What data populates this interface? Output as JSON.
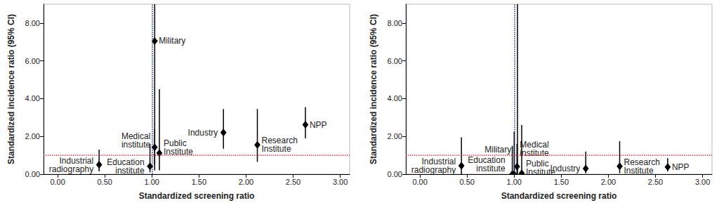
{
  "chart_data": [
    {
      "type": "scatter",
      "x_label": "Standardized screening ratio",
      "y_label": "Standardized incidence ratio (95% CI)",
      "xlim": [
        -0.15,
        3.1
      ],
      "ylim": [
        0,
        9
      ],
      "xticks": [
        {
          "value": 0,
          "label": "0.00"
        },
        {
          "value": 0.5,
          "label": "0.50"
        },
        {
          "value": 1,
          "label": "1.00"
        },
        {
          "value": 1.5,
          "label": "1.50"
        },
        {
          "value": 2,
          "label": "2.00"
        },
        {
          "value": 2.5,
          "label": "2.50"
        },
        {
          "value": 3,
          "label": "3.00"
        }
      ],
      "yticks": [
        {
          "value": 0,
          "label": "0.00"
        },
        {
          "value": 2,
          "label": "2.00"
        },
        {
          "value": 4,
          "label": "4.00"
        },
        {
          "value": 6,
          "label": "6.00"
        },
        {
          "value": 8,
          "label": "8.00"
        }
      ],
      "point_labels": [
        "Industrial radiography",
        "Education institute",
        "Military",
        "Medical institute",
        "Public Institute",
        "Industry",
        "Research Institute",
        "NPP"
      ],
      "x": [
        0.44,
        0.98,
        1.03,
        1.03,
        1.08,
        1.76,
        2.12,
        2.63
      ],
      "values": [
        0.5,
        0.42,
        7.05,
        1.42,
        1.12,
        2.2,
        1.55,
        2.62
      ],
      "ci_lower": [
        0.15,
        0.1,
        0.2,
        0.5,
        0.2,
        1.35,
        0.65,
        1.9
      ],
      "ci_upper": [
        1.3,
        1.6,
        11,
        2.4,
        4.5,
        3.45,
        3.45,
        3.55
      ],
      "color": "#000000",
      "marker": "diamond",
      "reference_lines": [
        {
          "axis": "x",
          "value": 1.0,
          "color": "#1a3a8a",
          "line_style": "dotted"
        },
        {
          "axis": "y",
          "value": 1.0,
          "color": "#e0393e",
          "line_style": "dotted"
        }
      ]
    },
    {
      "type": "scatter",
      "x_label": "Standardized screening ratio",
      "y_label": "Standardized incidence ratio (95% CI)",
      "xlim": [
        -0.15,
        3.1
      ],
      "ylim": [
        0,
        9
      ],
      "xticks": [
        {
          "value": 0,
          "label": "0.00"
        },
        {
          "value": 0.5,
          "label": "0.50"
        },
        {
          "value": 1,
          "label": "1.00"
        },
        {
          "value": 1.5,
          "label": "1.50"
        },
        {
          "value": 2,
          "label": "2.00"
        },
        {
          "value": 2.5,
          "label": "2.50"
        },
        {
          "value": 3,
          "label": "3.00"
        }
      ],
      "yticks": [
        {
          "value": 0,
          "label": "0.00"
        },
        {
          "value": 2,
          "label": "2.00"
        },
        {
          "value": 4,
          "label": "4.00"
        },
        {
          "value": 6,
          "label": "6.00"
        },
        {
          "value": 8,
          "label": "8.00"
        }
      ],
      "point_labels": [
        "Industrial radiography",
        "Education institute",
        "Military",
        "Medical institute",
        "Public Institute",
        "Industry",
        "Research Institute",
        "NPP"
      ],
      "x": [
        0.44,
        0.98,
        1.0,
        1.03,
        1.08,
        1.76,
        2.12,
        2.63
      ],
      "values": [
        0.45,
        0.0,
        0.0,
        0.4,
        0.05,
        0.3,
        0.42,
        0.38
      ],
      "ci_lower": [
        0.0,
        0.0,
        0.0,
        0.05,
        0.0,
        0.05,
        0.05,
        0.15
      ],
      "ci_upper": [
        1.95,
        1.5,
        2.25,
        1.6,
        2.6,
        1.2,
        1.75,
        0.85
      ],
      "color": "#000000",
      "marker": "diamond",
      "reference_lines": [
        {
          "axis": "x",
          "value": 1.03,
          "color": "#000000",
          "line_style": "solid"
        },
        {
          "axis": "x",
          "value": 1.0,
          "color": "#1a3a8a",
          "line_style": "dotted"
        },
        {
          "axis": "y",
          "value": 1.0,
          "color": "#e0393e",
          "line_style": "dotted"
        }
      ]
    }
  ]
}
